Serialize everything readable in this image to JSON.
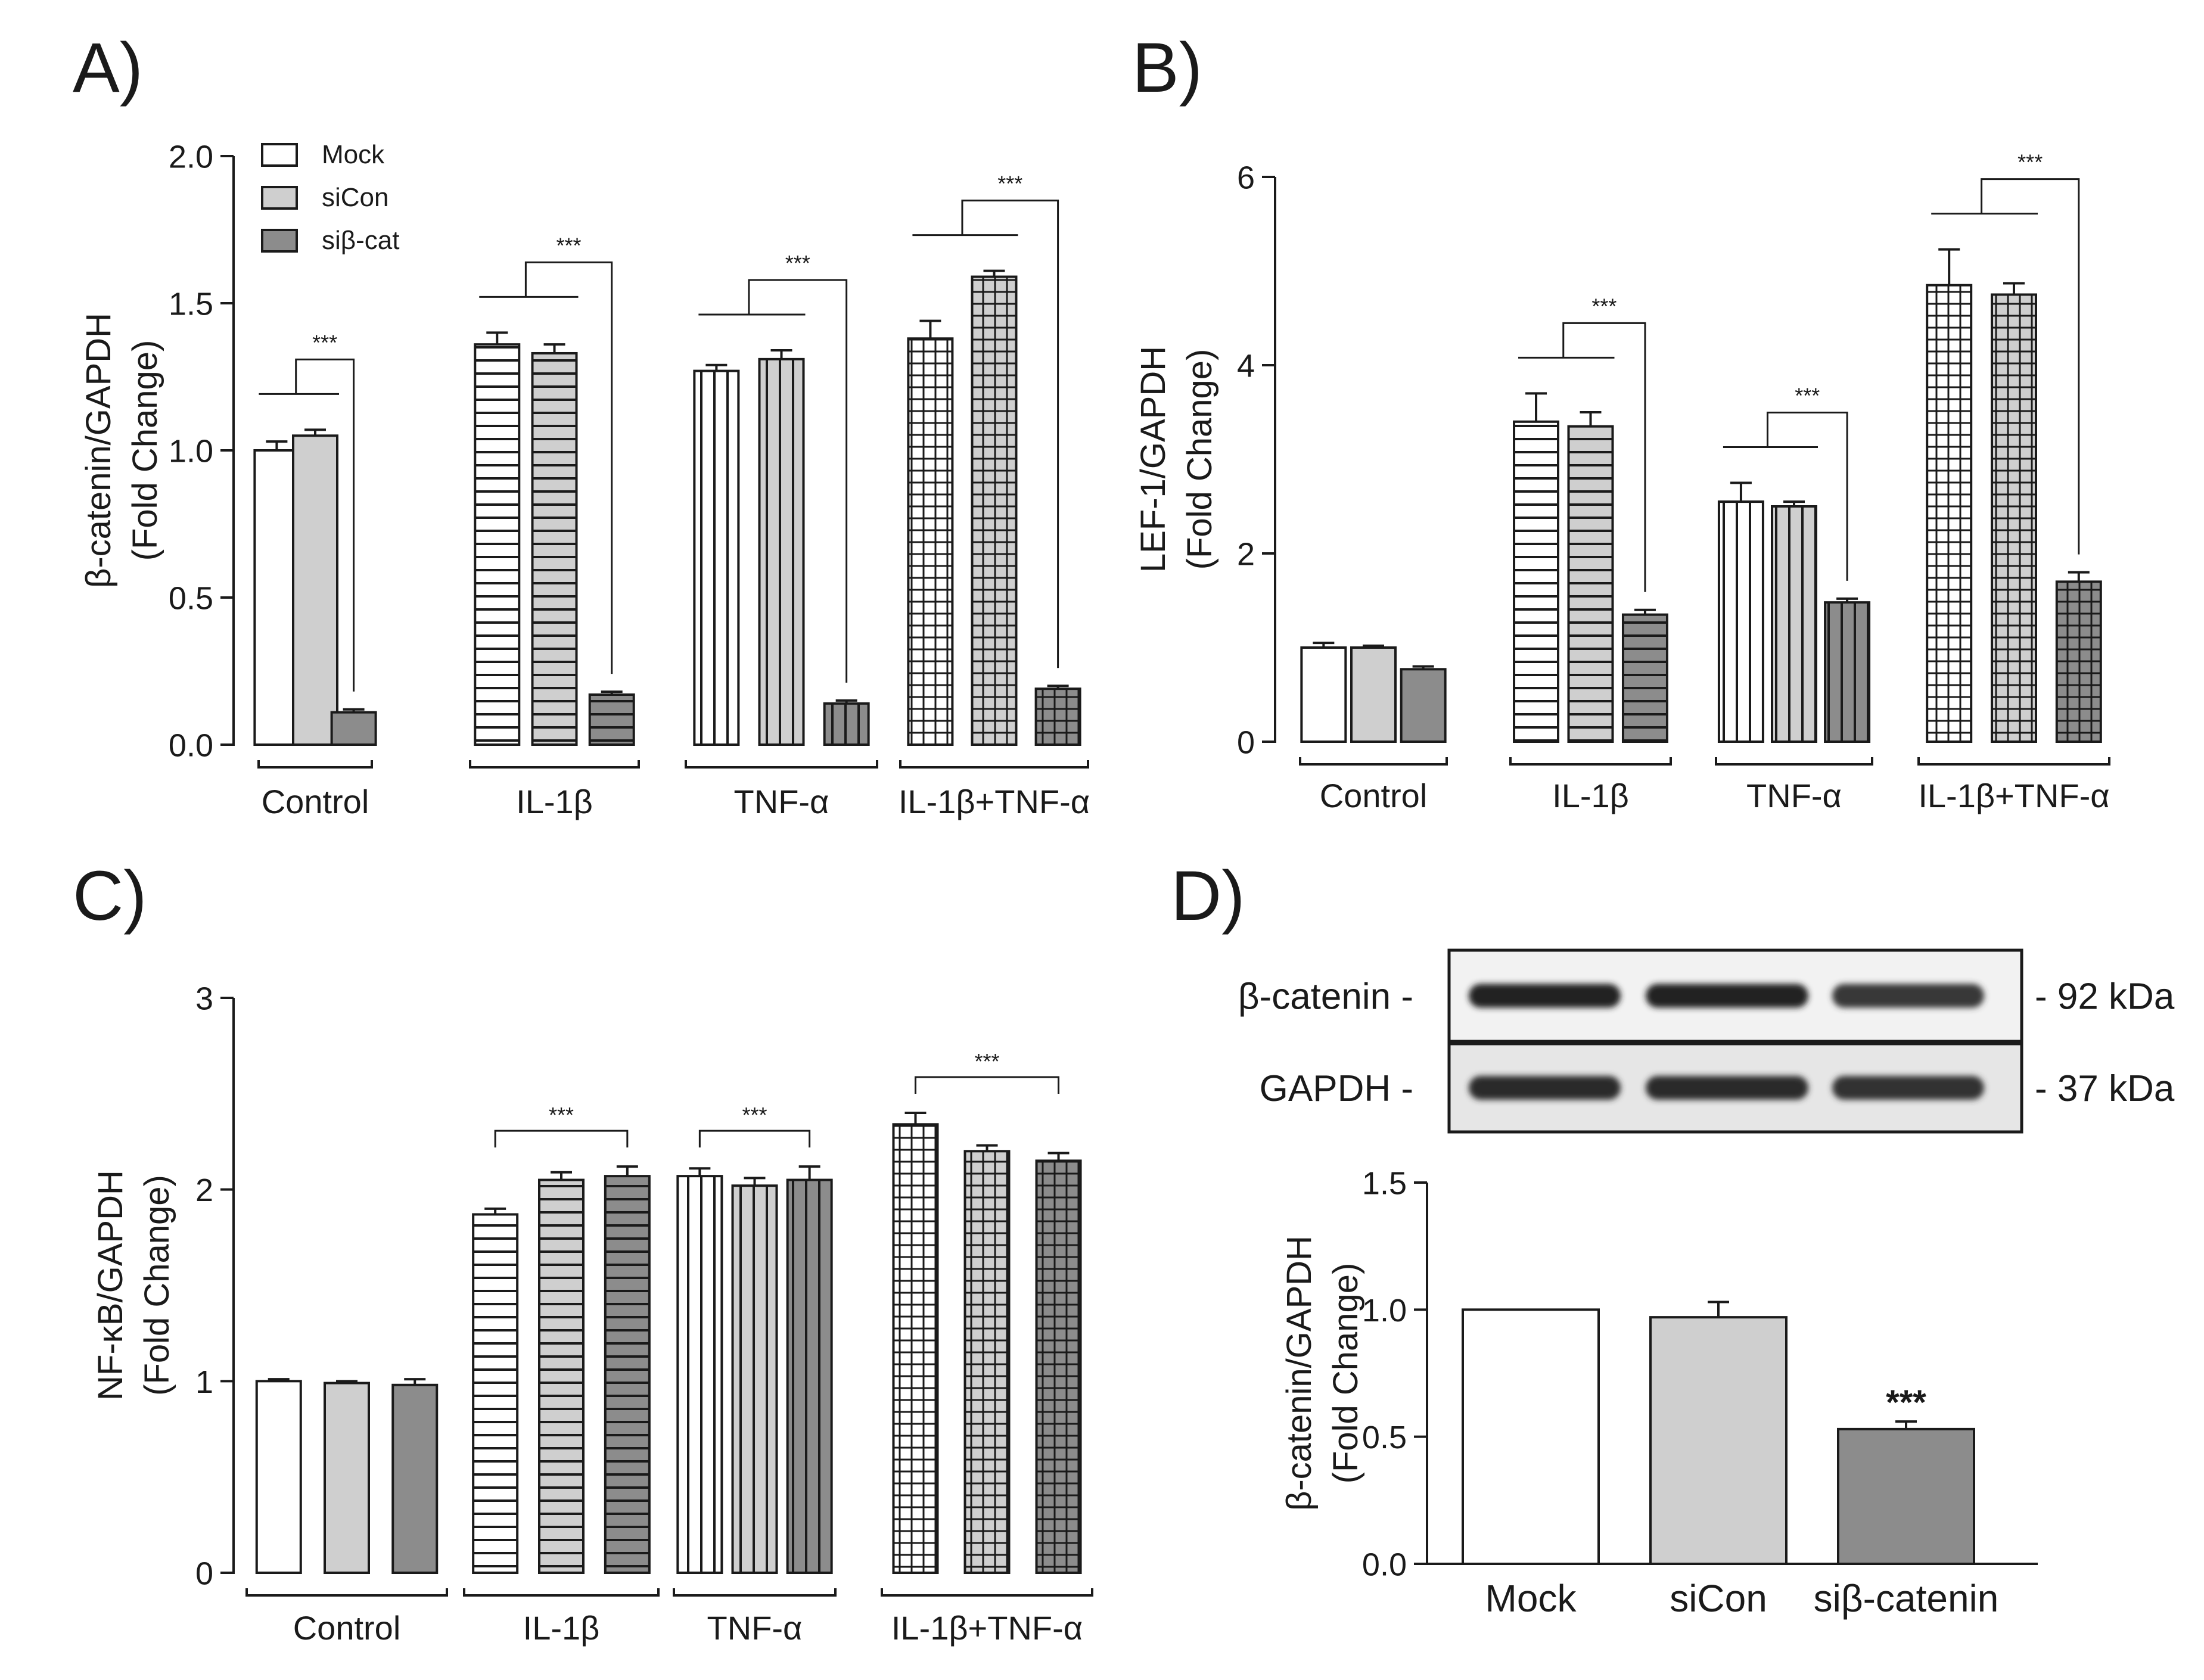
{
  "panels": [
    {
      "letter": "A)"
    },
    {
      "letter": "B)"
    },
    {
      "letter": "C)"
    },
    {
      "letter": "D)"
    }
  ],
  "legend": {
    "mock": "Mock",
    "sicon": "siCon",
    "sicat": "siβ-cat"
  },
  "significance": "***",
  "blot": {
    "bands": [
      {
        "protein": "β-catenin -",
        "size": "- 92 kDa",
        "intensity": [
          1.0,
          1.0,
          0.72
        ]
      },
      {
        "protein": "GAPDH -",
        "size": "- 37 kDa",
        "intensity": [
          0.9,
          0.92,
          0.8
        ]
      }
    ]
  },
  "colors": {
    "mock": "#ffffff",
    "sicon": "#cfcfcf",
    "sicat": "#8c8c8c",
    "ink": "#1a1a1a"
  },
  "chart_data": [
    {
      "type": "bar",
      "panel": "A)",
      "ylabel": "β-catenin/GAPDH",
      "ylabel2": "(Fold Change)",
      "ylim": [
        0,
        2.0
      ],
      "yticks": [
        "0.0",
        "0.5",
        "1.0",
        "1.5",
        "2.0"
      ],
      "categories": [
        "Control",
        "IL-1β",
        "TNF-α",
        "IL-1β+TNF-α"
      ],
      "series": [
        {
          "name": "Mock",
          "values": [
            1.0,
            1.36,
            1.27,
            1.38
          ],
          "errors": [
            0.03,
            0.04,
            0.02,
            0.06
          ]
        },
        {
          "name": "siCon",
          "values": [
            1.05,
            1.33,
            1.31,
            1.59
          ],
          "errors": [
            0.02,
            0.03,
            0.03,
            0.02
          ]
        },
        {
          "name": "siβ-cat",
          "values": [
            0.11,
            0.17,
            0.14,
            0.19
          ],
          "errors": [
            0.01,
            0.01,
            0.01,
            0.01
          ]
        }
      ],
      "significance": [
        "***",
        "***",
        "***",
        "***"
      ],
      "legend": true
    },
    {
      "type": "bar",
      "panel": "B)",
      "ylabel": "LEF-1/GAPDH",
      "ylabel2": "(Fold Change)",
      "ylim": [
        0,
        6
      ],
      "yticks": [
        "0",
        "2",
        "4",
        "6"
      ],
      "categories": [
        "Control",
        "IL-1β",
        "TNF-α",
        "IL-1β+TNF-α"
      ],
      "series": [
        {
          "name": "Mock",
          "values": [
            1.0,
            3.4,
            2.55,
            4.85
          ],
          "errors": [
            0.05,
            0.3,
            0.2,
            0.38
          ]
        },
        {
          "name": "siCon",
          "values": [
            1.0,
            3.35,
            2.5,
            4.75
          ],
          "errors": [
            0.02,
            0.15,
            0.05,
            0.12
          ]
        },
        {
          "name": "siβ-cat",
          "values": [
            0.77,
            1.35,
            1.48,
            1.7
          ],
          "errors": [
            0.03,
            0.05,
            0.04,
            0.1
          ]
        }
      ],
      "significance": [
        "",
        "***",
        "***",
        "***"
      ],
      "legend": false
    },
    {
      "type": "bar",
      "panel": "C)",
      "ylabel": "NF-κB/GAPDH",
      "ylabel2": "(Fold Change)",
      "ylim": [
        0,
        3
      ],
      "yticks": [
        "0",
        "1",
        "2",
        "3"
      ],
      "categories": [
        "Control",
        "IL-1β",
        "TNF-α",
        "IL-1β+TNF-α"
      ],
      "series": [
        {
          "name": "Mock",
          "values": [
            1.0,
            1.87,
            2.07,
            2.34
          ],
          "errors": [
            0.01,
            0.03,
            0.04,
            0.06
          ]
        },
        {
          "name": "siCon",
          "values": [
            0.99,
            2.05,
            2.02,
            2.2
          ],
          "errors": [
            0.01,
            0.04,
            0.04,
            0.03
          ]
        },
        {
          "name": "siβ-cat",
          "values": [
            0.98,
            2.07,
            2.05,
            2.15
          ],
          "errors": [
            0.03,
            0.05,
            0.07,
            0.04
          ]
        }
      ],
      "significance": [
        "",
        "***",
        "***",
        "***"
      ],
      "legend": false
    },
    {
      "type": "bar",
      "panel": "D)",
      "ylabel": "β-catenin/GAPDH",
      "ylabel2": "(Fold Change)",
      "ylim": [
        0,
        1.5
      ],
      "yticks": [
        "0.0",
        "0.5",
        "1.0",
        "1.5"
      ],
      "categories": [
        "Mock",
        "siCon",
        "siβ-catenin"
      ],
      "values": [
        1.0,
        0.97,
        0.53
      ],
      "errors": [
        0.0,
        0.06,
        0.03
      ],
      "significance": [
        "",
        "",
        "***"
      ]
    }
  ]
}
